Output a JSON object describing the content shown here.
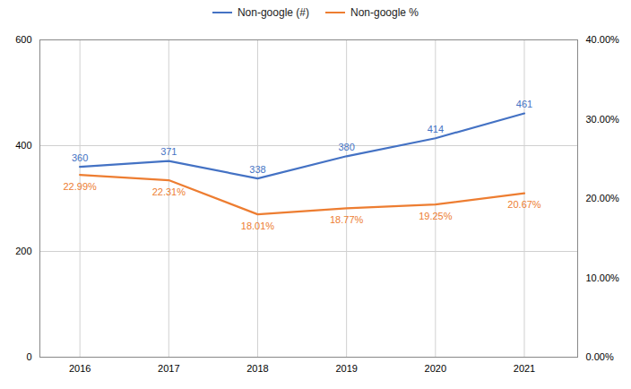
{
  "chart_data": {
    "type": "line",
    "x": [
      2016,
      2017,
      2018,
      2019,
      2020,
      2021
    ],
    "xlim": [
      2015.55,
      2021.6
    ],
    "xticks": [
      2016,
      2017,
      2018,
      2019,
      2020,
      2021
    ],
    "ylim": [
      0,
      600
    ],
    "yticks": [
      0,
      200,
      400,
      600
    ],
    "y2lim": [
      0,
      40
    ],
    "y2ticks": [
      {
        "value": 0,
        "label": "0.00%"
      },
      {
        "value": 10,
        "label": "10.00%"
      },
      {
        "value": 20,
        "label": "20.00%"
      },
      {
        "value": 30,
        "label": "30.00%"
      },
      {
        "value": 40,
        "label": "40.00%"
      }
    ],
    "grid": true,
    "legend": "top",
    "data_labels": true,
    "series": [
      {
        "name": "Non-google (#)",
        "color": "#4472C4",
        "values": [
          360,
          371,
          338,
          380,
          414,
          461
        ]
      },
      {
        "name": "Non-google %",
        "color": "#ED7D31",
        "axis": "y2",
        "values": [
          22.99,
          22.31,
          18.01,
          18.77,
          19.25,
          20.67
        ],
        "value_labels": [
          "22.99%",
          "22.31%",
          "18.01%",
          "18.77%",
          "19.25%",
          "20.67%"
        ]
      }
    ]
  }
}
